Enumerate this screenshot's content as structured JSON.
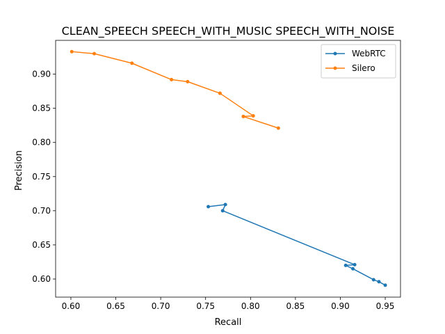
{
  "chart_data": {
    "type": "line",
    "title": "CLEAN_SPEECH SPEECH_WITH_MUSIC SPEECH_WITH_NOISE",
    "xlabel": "Recall",
    "ylabel": "Precision",
    "xlim": [
      0.583,
      0.967
    ],
    "ylim": [
      0.5735,
      0.9495
    ],
    "xticks": [
      0.6,
      0.65,
      0.7,
      0.75,
      0.8,
      0.85,
      0.9,
      0.95
    ],
    "xtick_labels": [
      "0.60",
      "0.65",
      "0.70",
      "0.75",
      "0.80",
      "0.85",
      "0.90",
      "0.95"
    ],
    "yticks": [
      0.6,
      0.65,
      0.7,
      0.75,
      0.8,
      0.85,
      0.9
    ],
    "ytick_labels": [
      "0.60",
      "0.65",
      "0.70",
      "0.75",
      "0.80",
      "0.85",
      "0.90"
    ],
    "grid": false,
    "legend_position": "top-right",
    "series": [
      {
        "name": "WebRTC",
        "color": "#1f77b4",
        "marker": "circle",
        "points": [
          [
            0.753,
            0.706
          ],
          [
            0.772,
            0.709
          ],
          [
            0.769,
            0.7
          ],
          [
            0.916,
            0.621
          ],
          [
            0.906,
            0.62
          ],
          [
            0.914,
            0.615
          ],
          [
            0.937,
            0.599
          ],
          [
            0.943,
            0.596
          ],
          [
            0.95,
            0.591
          ]
        ]
      },
      {
        "name": "Silero",
        "color": "#ff7f0e",
        "marker": "circle",
        "points": [
          [
            0.601,
            0.933
          ],
          [
            0.626,
            0.93
          ],
          [
            0.668,
            0.916
          ],
          [
            0.712,
            0.892
          ],
          [
            0.73,
            0.889
          ],
          [
            0.766,
            0.872
          ],
          [
            0.803,
            0.839
          ],
          [
            0.792,
            0.838
          ],
          [
            0.831,
            0.821
          ]
        ]
      }
    ]
  }
}
